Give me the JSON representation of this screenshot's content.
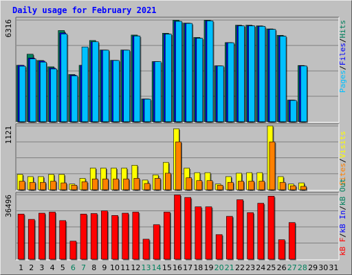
{
  "chart_data": {
    "type": "bar",
    "title": "Daily usage for February 2021",
    "categories": [
      "1",
      "2",
      "3",
      "4",
      "5",
      "6",
      "7",
      "8",
      "9",
      "10",
      "11",
      "12",
      "13",
      "14",
      "15",
      "16",
      "17",
      "18",
      "19",
      "20",
      "21",
      "22",
      "23",
      "24",
      "25",
      "26",
      "27",
      "28",
      "29",
      "30",
      "31"
    ],
    "weekend_days": [
      "6",
      "7",
      "13",
      "14",
      "20",
      "21",
      "27",
      "28"
    ],
    "panels": [
      {
        "id": "top",
        "max_label": "6316",
        "ymax": 6316,
        "series": [
          {
            "name": "Hits",
            "color": "#00805c",
            "values": [
              3500,
              4190,
              3800,
              3410,
              5660,
              2930,
              3500,
              5040,
              4450,
              3810,
              4450,
              5380,
              1410,
              3730,
              5490,
              6300,
              6120,
              5230,
              6300,
              3470,
              4910,
              5990,
              5990,
              5950,
              5760,
              5360,
              1340,
              3490,
              0,
              0,
              0
            ]
          },
          {
            "name": "Files",
            "color": "#0000ff",
            "values": [
              3500,
              3950,
              3760,
              3330,
              5510,
              2890,
              3500,
              4960,
              4450,
              3810,
              4450,
              5330,
              1410,
              3730,
              5450,
              6240,
              6110,
              5190,
              6270,
              3470,
              4910,
              5960,
              5960,
              5930,
              5740,
              5320,
              1340,
              3470,
              0,
              0,
              0
            ]
          },
          {
            "name": "Pages",
            "color": "#00c0ff",
            "values": [
              3450,
              3900,
              3700,
              3280,
              5450,
              2850,
              4640,
              4960,
              4440,
              3800,
              4440,
              5320,
              1400,
              3730,
              5440,
              6230,
              6100,
              5180,
              6260,
              3460,
              4900,
              5950,
              5950,
              5920,
              5730,
              5310,
              1320,
              3460,
              0,
              0,
              0
            ]
          }
        ]
      },
      {
        "id": "mid",
        "max_label": "1121",
        "ymax": 1121,
        "series": [
          {
            "name": "Visits",
            "color": "#ffff00",
            "values": [
              270,
              230,
              230,
              270,
              270,
              100,
              200,
              380,
              380,
              380,
              380,
              430,
              170,
              260,
              480,
              1070,
              380,
              300,
              300,
              100,
              230,
              290,
              300,
              300,
              1120,
              230,
              100,
              120,
              0,
              0,
              0
            ]
          },
          {
            "name": "Sites",
            "color": "#ff8000",
            "values": [
              150,
              130,
              130,
              150,
              120,
              80,
              140,
              190,
              190,
              190,
              190,
              200,
              110,
              200,
              290,
              840,
              210,
              160,
              160,
              80,
              130,
              150,
              150,
              150,
              840,
              130,
              70,
              60,
              0,
              0,
              0
            ]
          }
        ]
      },
      {
        "id": "bot",
        "max_label": "36496",
        "ymax": 36496,
        "series": [
          {
            "name": "KBytes",
            "color": "#ff0000",
            "values": [
              25500,
              22500,
              26000,
              26600,
              21800,
              10200,
              25500,
              25800,
              27300,
              24700,
              26000,
              26600,
              11300,
              19500,
              26600,
              36300,
              34900,
              29600,
              29600,
              13900,
              24200,
              33600,
              26300,
              31600,
              35600,
              11000,
              20700,
              0,
              0,
              0,
              0
            ]
          }
        ]
      }
    ],
    "right_labels": {
      "top": [
        {
          "text": "Pages",
          "color": "#00c0ff"
        },
        {
          "text": "/",
          "color": "#000000"
        },
        {
          "text": "Files",
          "color": "#0000ff"
        },
        {
          "text": "/",
          "color": "#000000"
        },
        {
          "text": "Hits",
          "color": "#00805c"
        }
      ],
      "mid": [
        {
          "text": "Sites",
          "color": "#ff8000"
        },
        {
          "text": "/",
          "color": "#000000"
        },
        {
          "text": "Visits",
          "color": "#ffff00"
        }
      ],
      "bot": [
        {
          "text": "kB F",
          "color": "#ff0000"
        },
        {
          "text": "/",
          "color": "#000000"
        },
        {
          "text": "kB In",
          "color": "#0000ff"
        },
        {
          "text": "/",
          "color": "#000000"
        },
        {
          "text": "kB Out",
          "color": "#00805c"
        }
      ]
    },
    "colors": {
      "title": "#0000ff",
      "weekday_label": "#000000",
      "weekend_label": "#00805c",
      "background": "#c0c0c0",
      "panel_grid": "#808080"
    },
    "grid": true
  }
}
